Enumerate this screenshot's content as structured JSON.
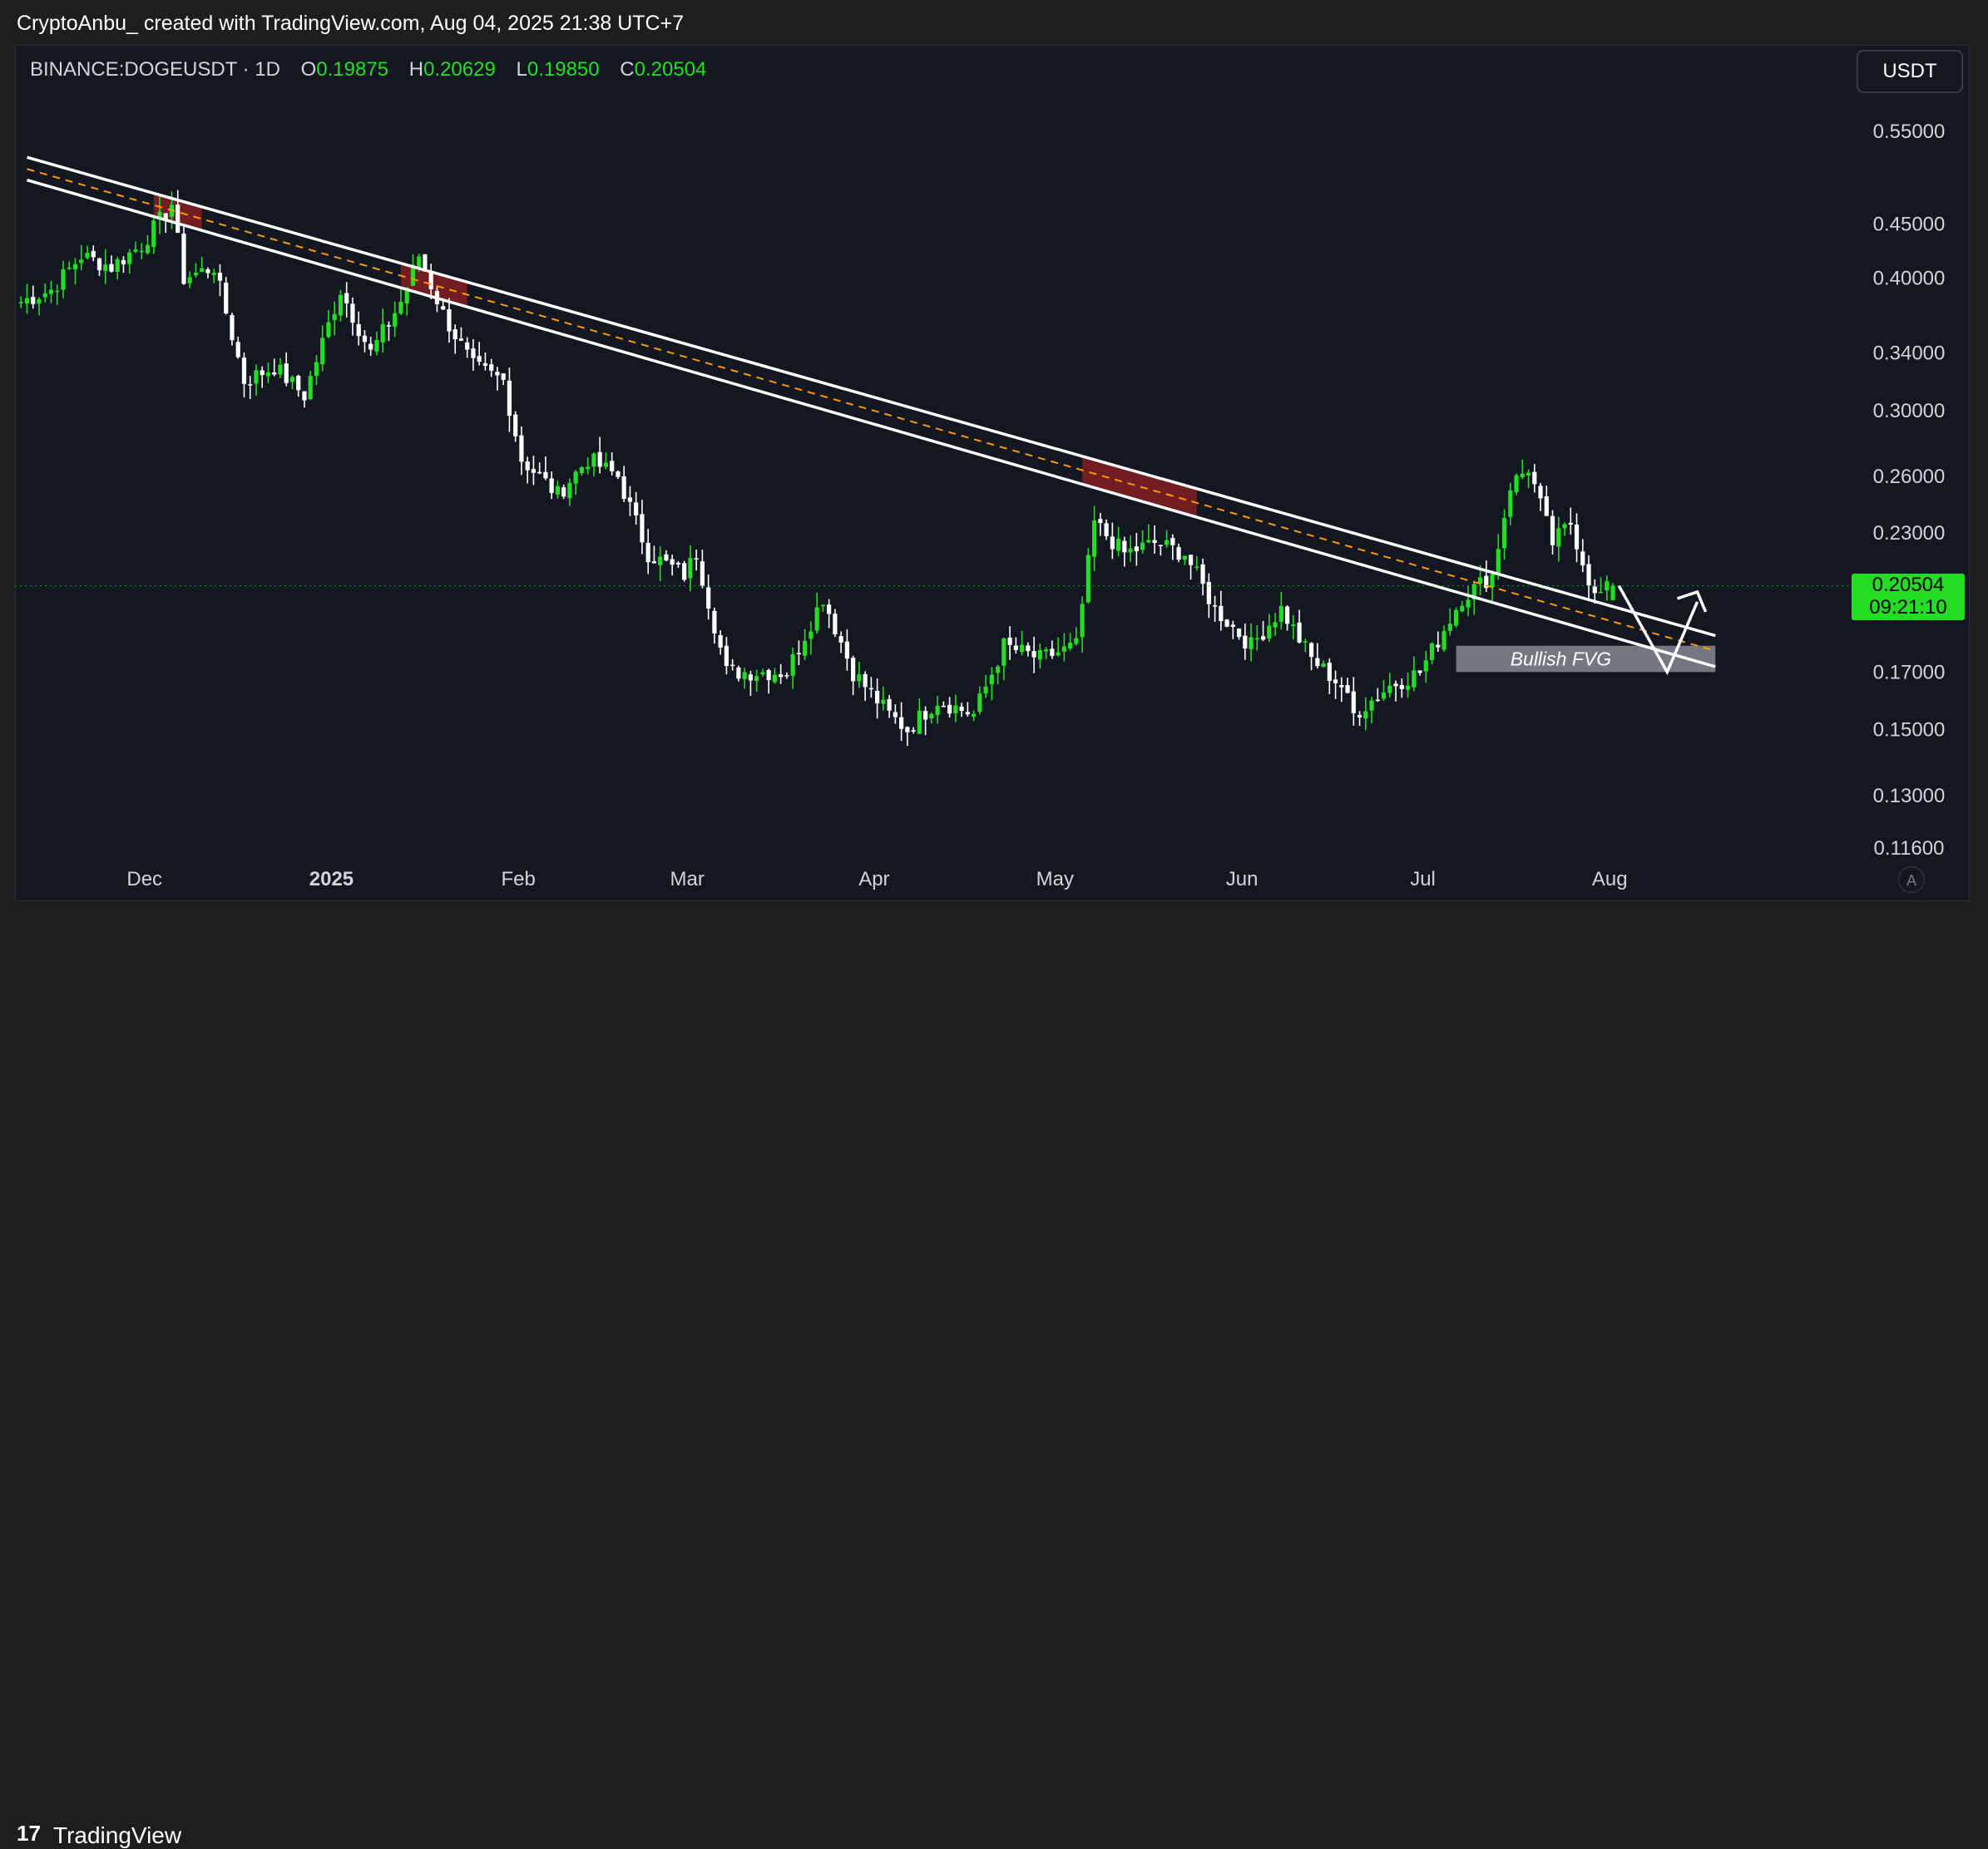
{
  "header": {
    "caption": "CryptoAnbu_ created with TradingView.com, Aug 04, 2025 21:38 UTC+7"
  },
  "legend": {
    "symbol": "BINANCE:DOGEUSDT · 1D",
    "open_key": "O",
    "open_value": "0.19875",
    "high_key": "H",
    "high_value": "0.20629",
    "low_key": "L",
    "low_value": "0.19850",
    "close_key": "C",
    "close_value": "0.20504"
  },
  "currency_button": "USDT",
  "price_label": {
    "price": "0.20504",
    "countdown": "09:21:10"
  },
  "auto_button": "A",
  "footer": {
    "logo_mark": "17",
    "logo_text": "TradingView"
  },
  "colors": {
    "background": "#131722",
    "up": "#22dd22",
    "down": "#ffffff",
    "channel_line": "#ffffff",
    "midline": "#ff9800",
    "resistance_zone": "#b22222",
    "fvg_zone": "#9598a1"
  },
  "chart_data": {
    "type": "candlestick",
    "symbol": "BINANCE:DOGEUSDT",
    "interval": "1D",
    "y_scale": "log",
    "ylim": [
      0.116,
      0.6
    ],
    "y_ticks": [
      "0.55000",
      "0.45000",
      "0.40000",
      "0.34000",
      "0.30000",
      "0.26000",
      "0.23000",
      "0.17000",
      "0.15000",
      "0.13000",
      "0.11600"
    ],
    "x_tick_labels": [
      "Dec",
      "2025",
      "Feb",
      "Mar",
      "Apr",
      "May",
      "Jun",
      "Jul",
      "Aug"
    ],
    "x_ticks_dates": [
      "2024-12-01",
      "2025-01-01",
      "2025-02-01",
      "2025-03-01",
      "2025-04-01",
      "2025-05-01",
      "2025-06-01",
      "2025-07-01",
      "2025-08-01"
    ],
    "x_range_dates": [
      "2024-11-12",
      "2025-09-09"
    ],
    "closes": [
      {
        "date": "2024-11-13",
        "close": 0.38
      },
      {
        "date": "2024-11-18",
        "close": 0.39
      },
      {
        "date": "2024-11-23",
        "close": 0.42
      },
      {
        "date": "2024-11-28",
        "close": 0.41
      },
      {
        "date": "2024-12-03",
        "close": 0.43
      },
      {
        "date": "2024-12-08",
        "close": 0.47
      },
      {
        "date": "2024-12-10",
        "close": 0.4
      },
      {
        "date": "2024-12-15",
        "close": 0.41
      },
      {
        "date": "2024-12-20",
        "close": 0.32
      },
      {
        "date": "2024-12-25",
        "close": 0.33
      },
      {
        "date": "2024-12-30",
        "close": 0.31
      },
      {
        "date": "2025-01-05",
        "close": 0.39
      },
      {
        "date": "2025-01-10",
        "close": 0.34
      },
      {
        "date": "2025-01-15",
        "close": 0.38
      },
      {
        "date": "2025-01-18",
        "close": 0.42
      },
      {
        "date": "2025-01-22",
        "close": 0.37
      },
      {
        "date": "2025-01-27",
        "close": 0.33
      },
      {
        "date": "2025-02-01",
        "close": 0.32
      },
      {
        "date": "2025-02-04",
        "close": 0.27
      },
      {
        "date": "2025-02-10",
        "close": 0.25
      },
      {
        "date": "2025-02-15",
        "close": 0.27
      },
      {
        "date": "2025-02-20",
        "close": 0.26
      },
      {
        "date": "2025-02-25",
        "close": 0.22
      },
      {
        "date": "2025-03-03",
        "close": 0.21
      },
      {
        "date": "2025-03-05",
        "close": 0.22
      },
      {
        "date": "2025-03-10",
        "close": 0.17
      },
      {
        "date": "2025-03-15",
        "close": 0.17
      },
      {
        "date": "2025-03-20",
        "close": 0.17
      },
      {
        "date": "2025-03-26",
        "close": 0.2
      },
      {
        "date": "2025-03-31",
        "close": 0.17
      },
      {
        "date": "2025-04-06",
        "close": 0.155
      },
      {
        "date": "2025-04-09",
        "close": 0.15
      },
      {
        "date": "2025-04-14",
        "close": 0.16
      },
      {
        "date": "2025-04-20",
        "close": 0.155
      },
      {
        "date": "2025-04-25",
        "close": 0.18
      },
      {
        "date": "2025-05-01",
        "close": 0.175
      },
      {
        "date": "2025-05-07",
        "close": 0.18
      },
      {
        "date": "2025-05-10",
        "close": 0.235
      },
      {
        "date": "2025-05-15",
        "close": 0.22
      },
      {
        "date": "2025-05-20",
        "close": 0.225
      },
      {
        "date": "2025-05-25",
        "close": 0.22
      },
      {
        "date": "2025-05-30",
        "close": 0.195
      },
      {
        "date": "2025-06-05",
        "close": 0.18
      },
      {
        "date": "2025-06-10",
        "close": 0.195
      },
      {
        "date": "2025-06-15",
        "close": 0.175
      },
      {
        "date": "2025-06-20",
        "close": 0.165
      },
      {
        "date": "2025-06-22",
        "close": 0.155
      },
      {
        "date": "2025-06-28",
        "close": 0.165
      },
      {
        "date": "2025-07-03",
        "close": 0.17
      },
      {
        "date": "2025-07-10",
        "close": 0.2
      },
      {
        "date": "2025-07-15",
        "close": 0.21
      },
      {
        "date": "2025-07-18",
        "close": 0.255
      },
      {
        "date": "2025-07-21",
        "close": 0.265
      },
      {
        "date": "2025-07-25",
        "close": 0.225
      },
      {
        "date": "2025-07-28",
        "close": 0.235
      },
      {
        "date": "2025-08-01",
        "close": 0.2
      },
      {
        "date": "2025-08-04",
        "close": 0.205
      }
    ],
    "last": {
      "date": "2025-08-04",
      "open": 0.19875,
      "high": 0.20629,
      "low": 0.1985,
      "close": 0.20504
    },
    "annotations": [
      {
        "type": "descending_channel",
        "lines": [
          [
            {
              "date": "2024-11-14",
              "price": 0.52
            },
            {
              "date": "2025-08-21",
              "price": 0.184
            }
          ],
          [
            {
              "date": "2024-11-14",
              "price": 0.495
            },
            {
              "date": "2025-08-21",
              "price": 0.172
            }
          ]
        ]
      },
      {
        "type": "dashed_midline",
        "line": [
          {
            "date": "2024-11-14",
            "price": 0.507
          },
          {
            "date": "2025-08-21",
            "price": 0.178
          }
        ]
      },
      {
        "type": "resistance_touch_zones",
        "zones": [
          {
            "from": "2024-12-05",
            "to": "2024-12-13"
          },
          {
            "from": "2025-01-15",
            "to": "2025-01-26"
          },
          {
            "from": "2025-05-08",
            "to": "2025-05-27"
          }
        ]
      },
      {
        "type": "zone",
        "label": "Bullish FVG",
        "from": "2025-07-09",
        "to": "2025-08-21",
        "top": 0.18,
        "bottom": 0.17
      },
      {
        "type": "projection_path",
        "points": [
          {
            "date": "2025-08-05",
            "price": 0.205
          },
          {
            "date": "2025-08-13",
            "price": 0.17
          },
          {
            "date": "2025-08-18",
            "price": 0.198
          }
        ]
      }
    ]
  }
}
